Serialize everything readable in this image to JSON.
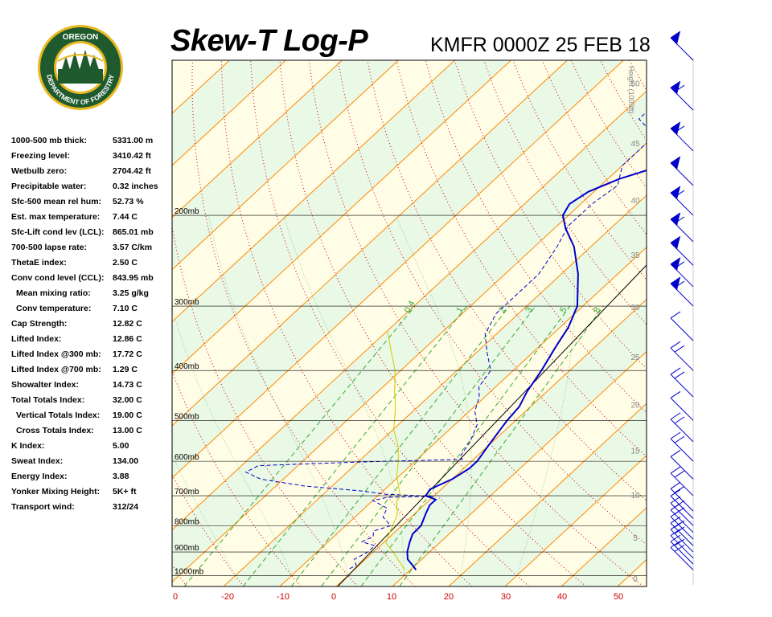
{
  "header": {
    "title": "Skew-T Log-P",
    "station": "KMFR 0000Z 25 FEB 18"
  },
  "logo": {
    "top_text": "OREGON",
    "ring_text": "DEPARTMENT OF FORESTRY"
  },
  "params": [
    {
      "label": "1000-500 mb thick:",
      "value": "5331.00 m"
    },
    {
      "label": "Freezing level:",
      "value": "3410.42 ft"
    },
    {
      "label": "Wetbulb zero:",
      "value": "2704.42 ft"
    },
    {
      "label": "Precipitable water:",
      "value": "0.32 inches"
    },
    {
      "label": "Sfc-500 mean rel hum:",
      "value": "52.73 %"
    },
    {
      "label": "Est. max temperature:",
      "value": "7.44 C"
    },
    {
      "label": "Sfc-Lift cond lev (LCL):",
      "value": "865.01 mb"
    },
    {
      "label": "700-500 lapse rate:",
      "value": "3.57 C/km"
    },
    {
      "label": "ThetaE index:",
      "value": "2.50 C"
    },
    {
      "label": "Conv cond level (CCL):",
      "value": "843.95 mb"
    },
    {
      "label": "  Mean mixing ratio:",
      "value": "3.25 g/kg"
    },
    {
      "label": "  Conv temperature:",
      "value": "7.10 C"
    },
    {
      "label": "Cap Strength:",
      "value": "12.82 C"
    },
    {
      "label": "Lifted Index:",
      "value": "12.86 C"
    },
    {
      "label": "Lifted Index @300 mb:",
      "value": "17.72 C"
    },
    {
      "label": "Lifted Index @700 mb:",
      "value": "1.29 C"
    },
    {
      "label": "Showalter Index:",
      "value": "14.73 C"
    },
    {
      "label": "Total Totals Index:",
      "value": "32.00 C"
    },
    {
      "label": "  Vertical Totals Index:",
      "value": "19.00 C"
    },
    {
      "label": "  Cross Totals Index:",
      "value": "13.00 C"
    },
    {
      "label": "K Index:",
      "value": "5.00"
    },
    {
      "label": "Sweat Index:",
      "value": "134.00"
    },
    {
      "label": "Energy Index:",
      "value": "3.88"
    },
    {
      "label": "Yonker Mixing Height:",
      "value": "5K+ ft"
    },
    {
      "label": "Transport wind:",
      "value": "312/24"
    }
  ],
  "colors": {
    "temperature": "#0000cc",
    "dewpoint": "#0000cc",
    "parcel": "#cccc00",
    "isotherm": "#ff8800",
    "dry_adiabat": "#cc0000",
    "mixing_ratio": "#33aa33",
    "band_green": "#eaf8e6",
    "band_yellow": "#fffde6",
    "temp_label": "#cc0000",
    "logo_green": "#1f5a2e",
    "logo_gold": "#e8b820"
  },
  "chart_data": {
    "type": "line",
    "kind": "skew-t log-p",
    "title": "Skew-T Log-P",
    "subtitle": "KMFR 0000Z 25 FEB 18",
    "ylabel": "Height (1000ft)",
    "pressure_levels": [
      1000,
      900,
      800,
      700,
      600,
      500,
      400,
      300,
      200
    ],
    "pressure_labels": [
      "1000mb",
      "900mb",
      "800mb",
      "700mb",
      "600mb",
      "500mb",
      "400mb",
      "300mb",
      "200mb"
    ],
    "temp_ticks": [
      0,
      -20,
      -10,
      0,
      10,
      20,
      30,
      40,
      50
    ],
    "height_ticks": [
      0,
      5,
      10,
      15,
      20,
      25,
      30,
      35,
      40,
      45,
      50
    ],
    "mixing_ratio_labels": [
      "0.4",
      "1",
      "2",
      "3",
      "5",
      "8"
    ],
    "series": [
      {
        "type": "temperature",
        "style": "solid",
        "points": [
          [
            975,
            11
          ],
          [
            955,
            9.5
          ],
          [
            930,
            7.5
          ],
          [
            900,
            6
          ],
          [
            860,
            4.5
          ],
          [
            830,
            3.5
          ],
          [
            800,
            3.4
          ],
          [
            760,
            2
          ],
          [
            730,
            1
          ],
          [
            712,
            1
          ],
          [
            700,
            -1.5
          ],
          [
            680,
            -2
          ],
          [
            650,
            0
          ],
          [
            620,
            1
          ],
          [
            600,
            1
          ],
          [
            560,
            0
          ],
          [
            520,
            -1
          ],
          [
            500,
            -1.5
          ],
          [
            470,
            -2
          ],
          [
            440,
            -3.5
          ],
          [
            400,
            -5
          ],
          [
            360,
            -7
          ],
          [
            330,
            -8.5
          ],
          [
            300,
            -11
          ],
          [
            260,
            -17
          ],
          [
            230,
            -23
          ],
          [
            212,
            -28
          ],
          [
            200,
            -31
          ],
          [
            190,
            -32
          ],
          [
            180,
            -31
          ],
          [
            170,
            -28
          ],
          [
            162,
            -24
          ],
          [
            155,
            -19
          ],
          [
            148,
            -14
          ],
          [
            140,
            -9
          ],
          [
            130,
            -4
          ],
          [
            120,
            0
          ],
          [
            110,
            4
          ],
          [
            105,
            6
          ]
        ]
      },
      {
        "type": "dewpoint",
        "style": "dashed",
        "points": [
          [
            970,
            -1
          ],
          [
            955,
            -0.5
          ],
          [
            930,
            -2
          ],
          [
            900,
            -1
          ],
          [
            875,
            -1
          ],
          [
            860,
            -4
          ],
          [
            840,
            -3
          ],
          [
            820,
            -4
          ],
          [
            800,
            -2
          ],
          [
            770,
            -5
          ],
          [
            740,
            -6
          ],
          [
            715,
            -10
          ],
          [
            705,
            -8
          ],
          [
            702,
            0
          ],
          [
            695,
            -9
          ],
          [
            685,
            -14
          ],
          [
            670,
            -25
          ],
          [
            650,
            -34
          ],
          [
            630,
            -38
          ],
          [
            612,
            -37
          ],
          [
            605,
            -25
          ],
          [
            600,
            -15
          ],
          [
            595,
            -2
          ],
          [
            585,
            -3
          ],
          [
            550,
            -4
          ],
          [
            510,
            -6
          ],
          [
            480,
            -9
          ],
          [
            450,
            -11
          ],
          [
            430,
            -13
          ],
          [
            400,
            -14
          ],
          [
            370,
            -18
          ],
          [
            340,
            -22
          ],
          [
            310,
            -24
          ],
          [
            290,
            -24
          ],
          [
            260,
            -24
          ],
          [
            230,
            -26
          ],
          [
            210,
            -28
          ],
          [
            190,
            -28
          ],
          [
            175,
            -27
          ],
          [
            160,
            -30
          ],
          [
            140,
            -30
          ],
          [
            130,
            -36
          ],
          [
            120,
            -36
          ],
          [
            110,
            -35
          ],
          [
            105,
            -33
          ]
        ]
      },
      {
        "type": "parcel",
        "style": "solid",
        "points": [
          [
            975,
            9
          ],
          [
            940,
            6.5
          ],
          [
            900,
            3.5
          ],
          [
            865,
            0.5
          ],
          [
            820,
            -1
          ],
          [
            760,
            -3
          ],
          [
            720,
            -5.5
          ],
          [
            700,
            -6
          ],
          [
            680,
            -7.5
          ],
          [
            640,
            -10.5
          ],
          [
            600,
            -13
          ],
          [
            560,
            -16
          ],
          [
            520,
            -20
          ],
          [
            500,
            -21.5
          ],
          [
            470,
            -24
          ],
          [
            440,
            -27
          ],
          [
            400,
            -31
          ],
          [
            370,
            -35
          ],
          [
            335,
            -40
          ]
        ]
      }
    ],
    "wind_barbs_levels_mb": [
      975,
      950,
      925,
      900,
      875,
      850,
      825,
      800,
      775,
      750,
      700,
      650,
      600,
      550,
      500,
      450,
      400,
      350,
      300,
      275,
      250,
      225,
      200,
      175,
      150,
      125,
      100
    ]
  }
}
